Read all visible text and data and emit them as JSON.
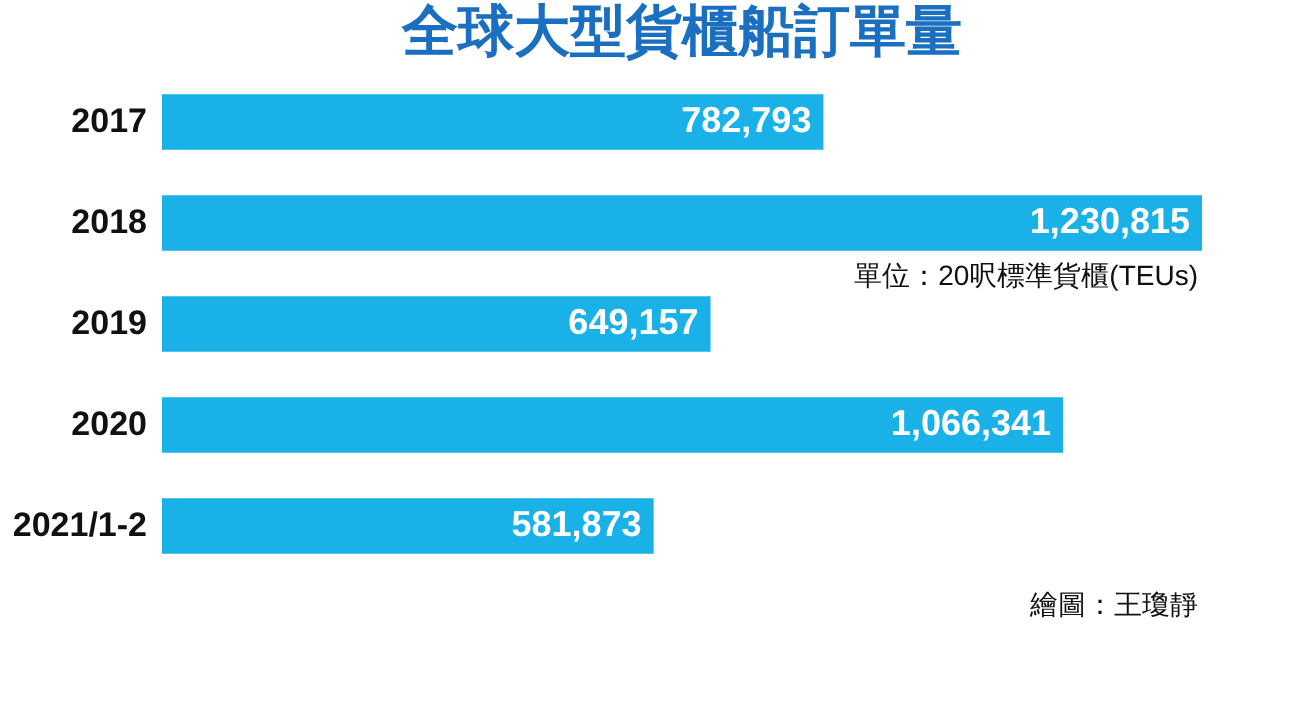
{
  "chart_data": {
    "type": "bar",
    "title": "全球大型貨櫃船訂單量",
    "orientation": "horizontal",
    "categories": [
      "2017",
      "2018",
      "2019",
      "2020",
      "2021/1-2"
    ],
    "values": [
      782793,
      1230815,
      649157,
      1066341,
      581873
    ],
    "color": "#1ab0e8",
    "value_labels": [
      "782,793",
      "1,230,815",
      "649,157",
      "1,066,341",
      "581,873"
    ],
    "annotations": [
      "單位：20呎標準貨櫃(TEUs)",
      "繪圖：王瓊靜"
    ]
  }
}
